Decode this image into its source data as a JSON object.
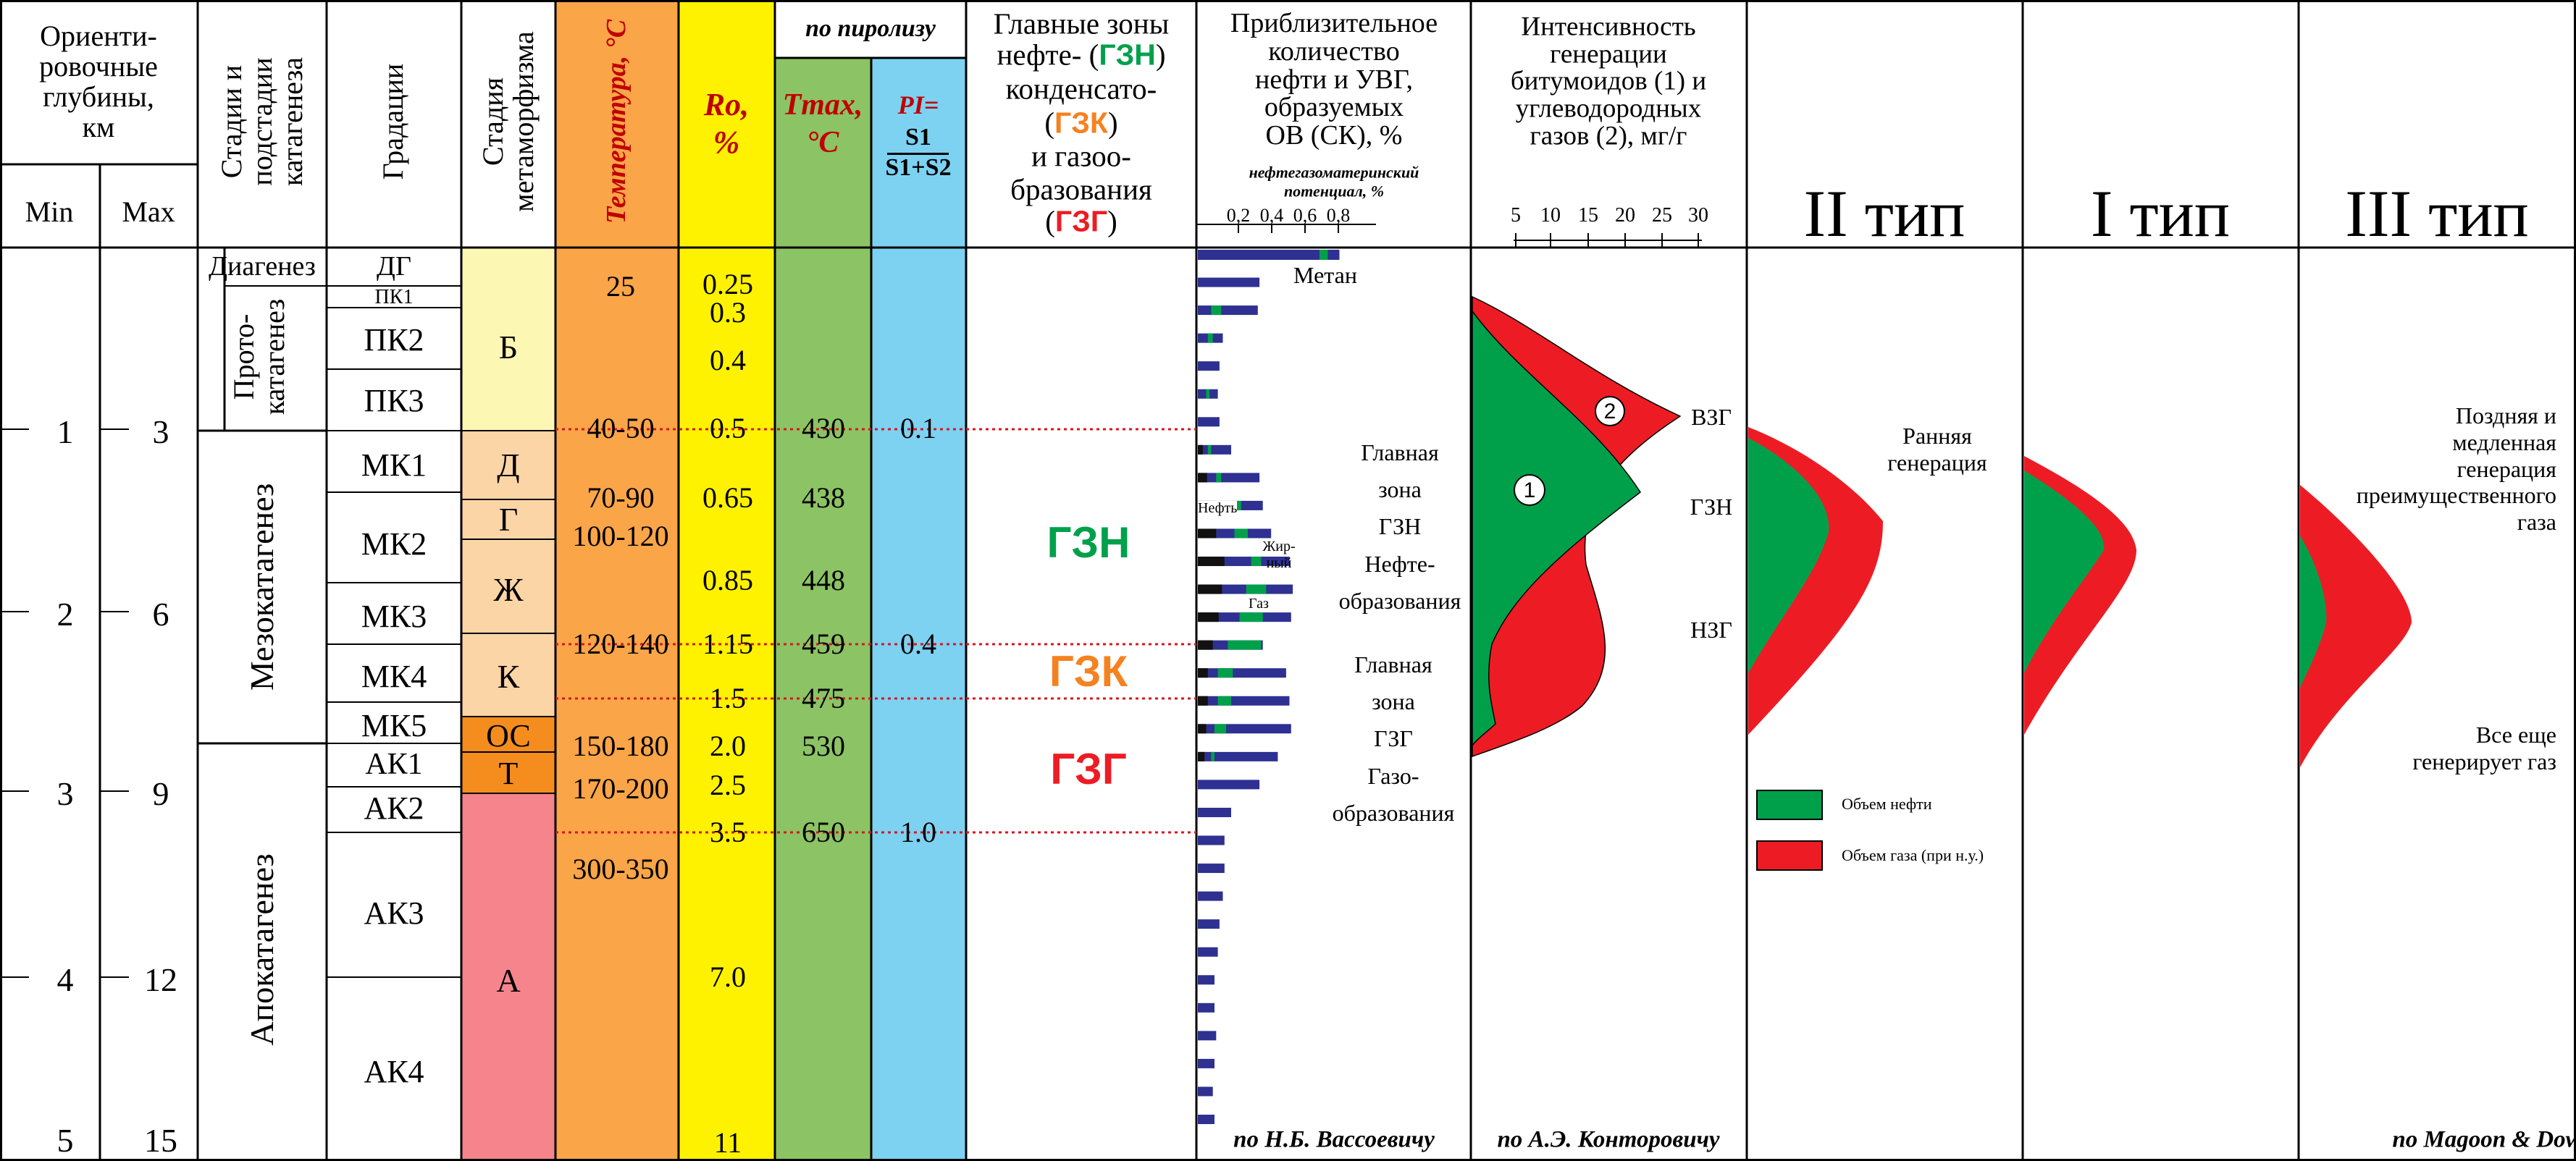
{
  "colors": {
    "metamorph_B": "#fdf7b4",
    "metamorph_D": "#fcd5a6",
    "metamorph_OS": "#f58d1e",
    "metamorph_A": "#f6848d",
    "temperature": "#f9a548",
    "ro": "#fff200",
    "tmax": "#8cc365",
    "pi": "#7dd2f2",
    "oil_green": "#00a04b",
    "gas_red": "#ed1c24",
    "bar_navy": "#2e3191",
    "zone_orange": "#f58220",
    "dotted_red": "#d7161f"
  },
  "header": {
    "depth_title": "Ориенти-\nровочные\nглубины,\nкм",
    "min": "Min",
    "max": "Max",
    "stages": "Стадии и\nподстадии\nкатагенеза",
    "gradations": "Градации",
    "metamorphism": "Стадия\nметаморфизма",
    "temperature": "Температура, °С",
    "ro_line1": "Ro,",
    "ro_line2": "%",
    "pyrolysis": "по пиролизу",
    "tmax_line1": "Tmax,",
    "tmax_line2": "°C",
    "pi_line1": "PI=",
    "pi_line2": "S1",
    "pi_line3": "S1+S2",
    "zones_intro": "Главные зоны",
    "zones_oil_prefix": "нефте- (",
    "zones_oil_code": "ГЗН",
    "zones_oil_suffix": ")",
    "zones_cond_word": "конденсато-",
    "zones_cond_open": "(",
    "zones_cond_code": "ГЗК",
    "zones_cond_close": ")",
    "zones_gas_word": "и газоо-",
    "zones_gas_word2": "бразования",
    "zones_gas_open": "(",
    "zones_gas_code": "ГЗГ",
    "zones_gas_close": ")",
    "amount": "Приблизительное\nколичество\nнефти и УВГ,\nобразуемых\nОВ (СК), %",
    "potential": "нефтегазоматеринский\nпотенциал, %",
    "intensity": "Интенсивность\nгенерации\nбитумоидов (1) и\nуглеводородных\nгазов (2), мг/г",
    "type2": "II тип",
    "type1": "I тип",
    "type3": "III тип"
  },
  "depth": {
    "min": [
      "1",
      "2",
      "3",
      "4",
      "5"
    ],
    "max": [
      "3",
      "6",
      "9",
      "12",
      "15"
    ]
  },
  "stages": {
    "diagenez": "Диагенез",
    "protokatagenez": "Прото-\nкатагенез",
    "mezokatagenez": "Мезокатагенез",
    "apokatagenez": "Апокатагенез"
  },
  "gradations": [
    "ДГ",
    "ПК1",
    "ПК2",
    "ПК3",
    "МК1",
    "МК2",
    "МК3",
    "МК4",
    "МК5",
    "АК1",
    "АК2",
    "АК3",
    "АК4"
  ],
  "metamorphism": [
    "Б",
    "Д",
    "Г",
    "Ж",
    "К",
    "ОС",
    "Т",
    "А"
  ],
  "temperature": [
    "25",
    "40-50",
    "70-90",
    "100-120",
    "120-140",
    "150-180",
    "170-200",
    "300-350"
  ],
  "ro": [
    "0.25",
    "0.3",
    "0.4",
    "0.5",
    "0.65",
    "0.85",
    "1.15",
    "1.5",
    "2.0",
    "2.5",
    "3.5",
    "7.0",
    "11"
  ],
  "tmax": [
    "430",
    "438",
    "448",
    "459",
    "475",
    "530",
    "650"
  ],
  "pi": [
    "0.1",
    "0.4",
    "1.0"
  ],
  "zones": {
    "gzn": "ГЗН",
    "gzk": "ГЗК",
    "gzg": "ГЗГ"
  },
  "vassoevich": {
    "axis_ticks": [
      "0,2",
      "0,4",
      "0,6",
      "0,8"
    ],
    "metan": "Метан",
    "main_zone_gzn": "Главная\nзона\nГЗН\nНефте-\nобразования",
    "main_zone_gzg": "Главная\nзона\nГЗГ\nГазо-\nобразования",
    "oil": "Нефть",
    "fat_gas": "Жир-\nный",
    "gas": "Газ",
    "credit": "по Н.Б. Вассоевичу",
    "bars": [
      {
        "navy": 0.85,
        "green_from": 0.73,
        "green_to": 0.78
      },
      {
        "navy": 0.37,
        "green_from": 0.0,
        "green_to": 0.0
      },
      {
        "navy": 0.36,
        "green_from": 0.08,
        "green_to": 0.14
      },
      {
        "navy": 0.15,
        "green_from": 0.06,
        "green_to": 0.09
      },
      {
        "navy": 0.13,
        "green_from": 0.0,
        "green_to": 0.0
      },
      {
        "navy": 0.12,
        "green_from": 0.05,
        "green_to": 0.07
      },
      {
        "navy": 0.13,
        "green_from": 0.0,
        "green_to": 0.0
      },
      {
        "navy": 0.2,
        "green_from": 0.06,
        "green_to": 0.08
      },
      {
        "navy": 0.37,
        "green_from": 0.11,
        "green_to": 0.14
      },
      {
        "navy": 0.39,
        "green_from": 0.21,
        "green_to": 0.26
      },
      {
        "navy": 0.44,
        "green_from": 0.22,
        "green_to": 0.3
      },
      {
        "navy": 0.55,
        "green_from": 0.32,
        "green_to": 0.38
      },
      {
        "navy": 0.57,
        "green_from": 0.29,
        "green_to": 0.41
      },
      {
        "navy": 0.56,
        "green_from": 0.25,
        "green_to": 0.39
      },
      {
        "navy": 0.39,
        "green_from": 0.18,
        "green_to": 0.38
      },
      {
        "navy": 0.53,
        "green_from": 0.12,
        "green_to": 0.21
      },
      {
        "navy": 0.55,
        "green_from": 0.12,
        "green_to": 0.2
      },
      {
        "navy": 0.56,
        "green_from": 0.1,
        "green_to": 0.17
      },
      {
        "navy": 0.48,
        "green_from": 0.08,
        "green_to": 0.1
      },
      {
        "navy": 0.37,
        "green_from": 0.0,
        "green_to": 0.0
      },
      {
        "navy": 0.2,
        "green_from": 0.0,
        "green_to": 0.0
      },
      {
        "navy": 0.16,
        "green_from": 0.0,
        "green_to": 0.0
      },
      {
        "navy": 0.16,
        "green_from": 0.0,
        "green_to": 0.0
      },
      {
        "navy": 0.15,
        "green_from": 0.0,
        "green_to": 0.0
      },
      {
        "navy": 0.13,
        "green_from": 0.0,
        "green_to": 0.0
      },
      {
        "navy": 0.12,
        "green_from": 0.0,
        "green_to": 0.0
      },
      {
        "navy": 0.1,
        "green_from": 0.0,
        "green_to": 0.0
      },
      {
        "navy": 0.1,
        "green_from": 0.0,
        "green_to": 0.0
      },
      {
        "navy": 0.11,
        "green_from": 0.0,
        "green_to": 0.0
      },
      {
        "navy": 0.1,
        "green_from": 0.0,
        "green_to": 0.0
      },
      {
        "navy": 0.09,
        "green_from": 0.0,
        "green_to": 0.0
      },
      {
        "navy": 0.1,
        "green_from": 0.0,
        "green_to": 0.0
      }
    ]
  },
  "kontorovich": {
    "axis_ticks": [
      "5",
      "10",
      "15",
      "20",
      "25",
      "30"
    ],
    "marker1": "1",
    "marker2": "2",
    "vzg": "ВЗГ",
    "gzn": "ГЗН",
    "nzg": "НЗГ",
    "credit": "по А.Э. Конторовичу"
  },
  "type2_panel": {
    "early": "Ранняя\nгенерация",
    "legend_oil": "Объем нефти",
    "legend_gas": "Объем газа (при н.у.)"
  },
  "type3_panel": {
    "late": "Поздняя и\nмедленная\nгенерация\nпреимущественного\nгаза",
    "still": "Все еще\nгенерирует газ",
    "credit": "по Magoon & Dow"
  }
}
